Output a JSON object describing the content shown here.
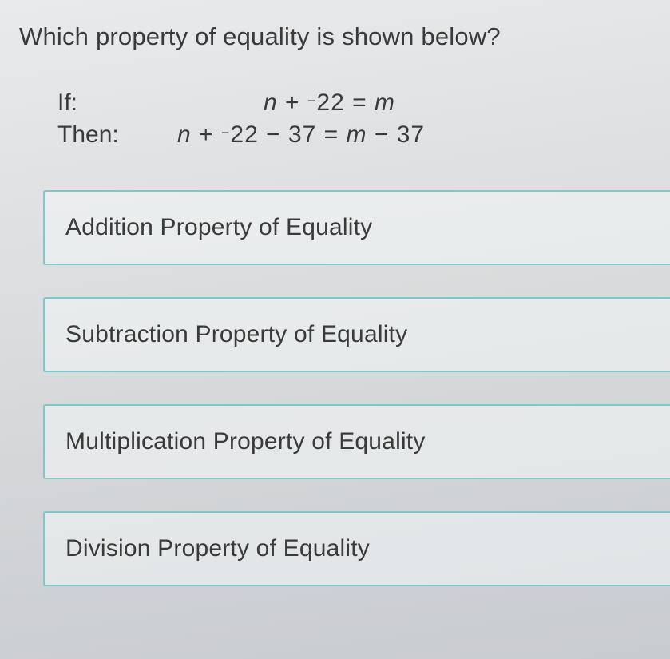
{
  "question": "Which property of equality is shown below?",
  "given": {
    "if_label": "If:",
    "if_expr_html": "<span class='mi'>n</span> + <sup style='font-size:60%;vertical-align:6px;'>−</sup>22 = <span class='mi'>m</span>",
    "then_label": "Then:",
    "then_expr_html": "<span class='mi'>n</span> + <sup style='font-size:60%;vertical-align:6px;'>−</sup>22 − 37 = <span class='mi'>m</span> − 37"
  },
  "options": [
    {
      "label": "Addition Property of Equality"
    },
    {
      "label": "Subtraction Property of Equality"
    },
    {
      "label": "Multiplication Property of Equality"
    },
    {
      "label": "Division Property of Equality"
    }
  ],
  "style": {
    "option_border_color": "#7fc7c9",
    "text_color": "#3a3a3a",
    "font_size_question": 31,
    "font_size_option": 30
  }
}
